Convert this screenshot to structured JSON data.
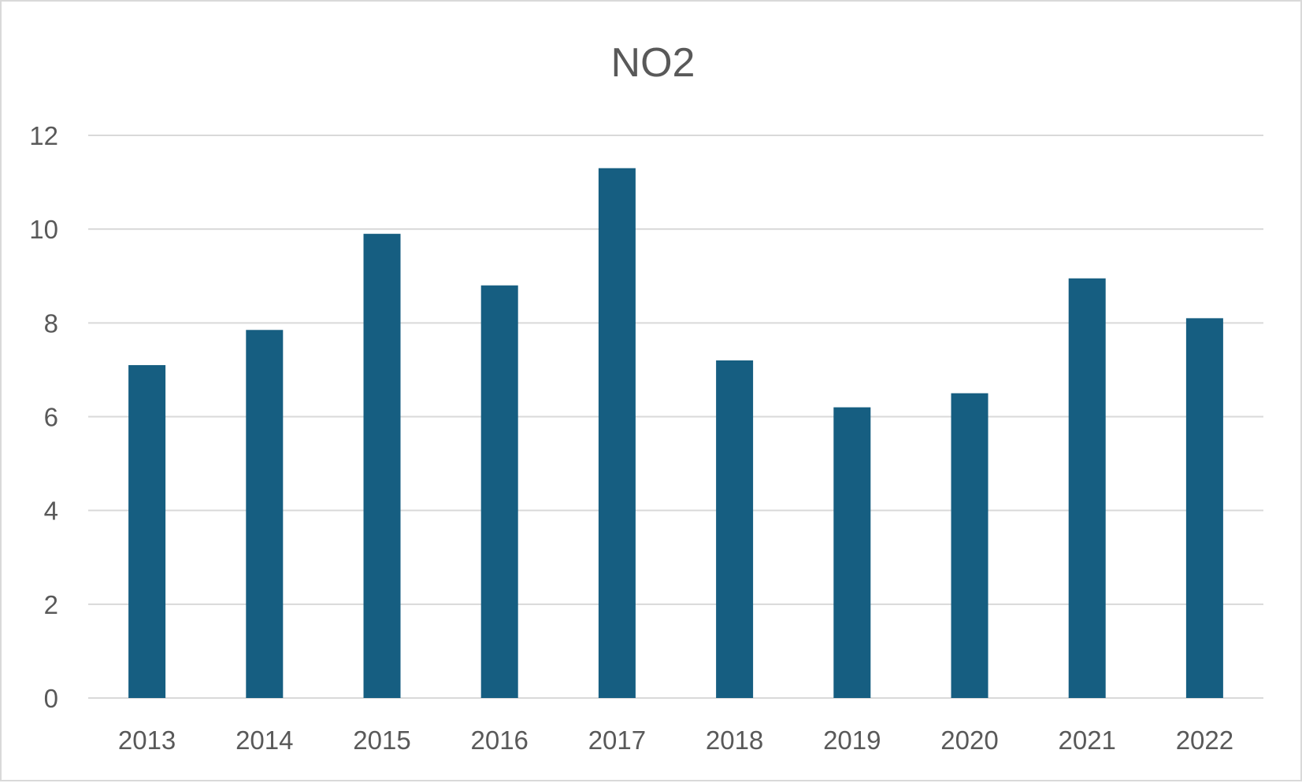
{
  "chart_data": {
    "type": "bar",
    "title": "NO2",
    "xlabel": "",
    "ylabel": "",
    "categories": [
      "2013",
      "2014",
      "2015",
      "2016",
      "2017",
      "2018",
      "2019",
      "2020",
      "2021",
      "2022"
    ],
    "values": [
      7.1,
      7.85,
      9.9,
      8.8,
      11.3,
      7.2,
      6.2,
      6.5,
      8.95,
      8.1
    ],
    "ylim": [
      0,
      12
    ],
    "yticks": [
      "0",
      "2",
      "4",
      "6",
      "8",
      "10",
      "12"
    ],
    "grid": true,
    "legend": "none",
    "colors": {
      "bar": "#165e81",
      "grid": "#d9d9d9",
      "text": "#595959"
    }
  }
}
